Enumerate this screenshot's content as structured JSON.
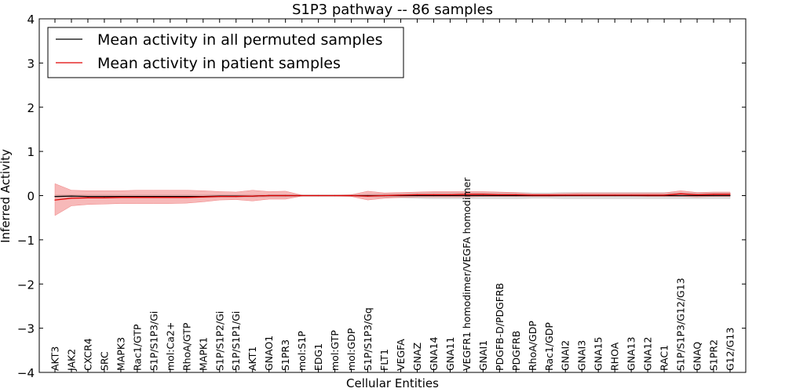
{
  "chart_data": {
    "type": "line",
    "title": "S1P3 pathway -- 86 samples",
    "xlabel": "Cellular Entities",
    "ylabel": "Inferred Activity",
    "ylim": [
      -4,
      4
    ],
    "yticks": [
      -4,
      -3,
      -2,
      -1,
      0,
      1,
      2,
      3,
      4
    ],
    "ytick_labels": [
      "−4",
      "−3",
      "−2",
      "−1",
      "0",
      "1",
      "2",
      "3",
      "4"
    ],
    "grid": false,
    "legend_position": "top-left",
    "categories": [
      "AKT3",
      "JAK2",
      "CXCR4",
      "SRC",
      "MAPK3",
      "Rac1/GTP",
      "S1P/S1P3/Gi",
      "mol:Ca2+",
      "RhoA/GTP",
      "MAPK1",
      "S1P/S1P2/Gi",
      "S1P/S1P1/Gi",
      "AKT1",
      "GNAO1",
      "S1PR3",
      "mol:S1P",
      "EDG1",
      "mol:GTP",
      "mol:GDP",
      "S1P/S1P3/Gq",
      "FLT1",
      "VEGFA",
      "GNAZ",
      "GNA14",
      "GNA11",
      "VEGFR1 homodimer/VEGFA homodimer",
      "GNAI1",
      "PDGFB-D/PDGFRB",
      "PDGFRB",
      "RhoA/GDP",
      "Rac1/GDP",
      "GNAI2",
      "GNAI3",
      "GNA15",
      "RHOA",
      "GNA13",
      "GNA12",
      "RAC1",
      "S1P/S1P3/G12/G13",
      "GNAQ",
      "S1PR2",
      "G12/G13"
    ],
    "series": [
      {
        "name": "Mean activity in all permuted samples",
        "color": "#000000",
        "band_color": "#c8c8c8",
        "values": [
          -0.02,
          -0.01,
          -0.02,
          -0.02,
          -0.02,
          -0.02,
          -0.02,
          -0.02,
          -0.02,
          -0.02,
          -0.01,
          -0.01,
          -0.01,
          0.0,
          0.0,
          0.0,
          0.0,
          0.0,
          0.0,
          0.0,
          0.0,
          0.0,
          0.0,
          0.0,
          0.0,
          0.0,
          0.0,
          0.0,
          0.0,
          0.0,
          0.0,
          0.0,
          0.0,
          0.0,
          0.0,
          0.0,
          0.0,
          0.0,
          0.0,
          0.0,
          0.0,
          0.0
        ],
        "lower": [
          -0.05,
          -0.05,
          -0.05,
          -0.05,
          -0.05,
          -0.05,
          -0.05,
          -0.05,
          -0.05,
          -0.05,
          -0.04,
          -0.04,
          -0.04,
          -0.03,
          -0.03,
          -0.01,
          -0.01,
          -0.01,
          -0.01,
          -0.03,
          -0.04,
          -0.05,
          -0.06,
          -0.07,
          -0.07,
          -0.07,
          -0.07,
          -0.07,
          -0.07,
          -0.06,
          -0.06,
          -0.07,
          -0.07,
          -0.07,
          -0.07,
          -0.07,
          -0.07,
          -0.07,
          -0.07,
          -0.07,
          -0.07,
          -0.07
        ],
        "upper": [
          0.02,
          0.02,
          0.02,
          0.02,
          0.02,
          0.02,
          0.02,
          0.02,
          0.02,
          0.02,
          0.02,
          0.02,
          0.02,
          0.02,
          0.02,
          0.01,
          0.01,
          0.01,
          0.01,
          0.03,
          0.04,
          0.05,
          0.06,
          0.07,
          0.07,
          0.07,
          0.07,
          0.07,
          0.07,
          0.06,
          0.06,
          0.07,
          0.07,
          0.07,
          0.07,
          0.07,
          0.07,
          0.07,
          0.07,
          0.07,
          0.07,
          0.07
        ]
      },
      {
        "name": "Mean activity in patient samples",
        "color": "#e00000",
        "band_color": "#f08080",
        "values": [
          -0.1,
          -0.06,
          -0.05,
          -0.05,
          -0.04,
          -0.04,
          -0.04,
          -0.04,
          -0.04,
          -0.03,
          -0.02,
          -0.02,
          -0.01,
          0.0,
          0.0,
          0.0,
          0.0,
          0.0,
          0.0,
          -0.01,
          0.0,
          0.01,
          0.02,
          0.02,
          0.02,
          0.03,
          0.03,
          0.02,
          0.02,
          0.01,
          0.01,
          0.01,
          0.01,
          0.01,
          0.01,
          0.01,
          0.01,
          0.01,
          0.04,
          0.02,
          0.03,
          0.03
        ],
        "lower": [
          -0.45,
          -0.23,
          -0.2,
          -0.19,
          -0.18,
          -0.18,
          -0.18,
          -0.18,
          -0.17,
          -0.14,
          -0.1,
          -0.09,
          -0.12,
          -0.08,
          -0.08,
          -0.01,
          -0.01,
          -0.01,
          -0.02,
          -0.1,
          -0.06,
          -0.04,
          -0.03,
          -0.03,
          -0.03,
          -0.03,
          -0.02,
          -0.02,
          -0.02,
          -0.02,
          -0.02,
          -0.01,
          -0.01,
          -0.01,
          -0.01,
          -0.01,
          -0.02,
          -0.02,
          -0.02,
          -0.03,
          -0.02,
          -0.02
        ],
        "upper": [
          0.27,
          0.12,
          0.11,
          0.11,
          0.11,
          0.12,
          0.12,
          0.12,
          0.12,
          0.11,
          0.09,
          0.08,
          0.12,
          0.09,
          0.1,
          0.01,
          0.01,
          0.01,
          0.02,
          0.1,
          0.06,
          0.07,
          0.08,
          0.09,
          0.09,
          0.09,
          0.09,
          0.08,
          0.07,
          0.04,
          0.04,
          0.05,
          0.06,
          0.06,
          0.06,
          0.06,
          0.06,
          0.06,
          0.11,
          0.07,
          0.08,
          0.08
        ]
      }
    ]
  }
}
